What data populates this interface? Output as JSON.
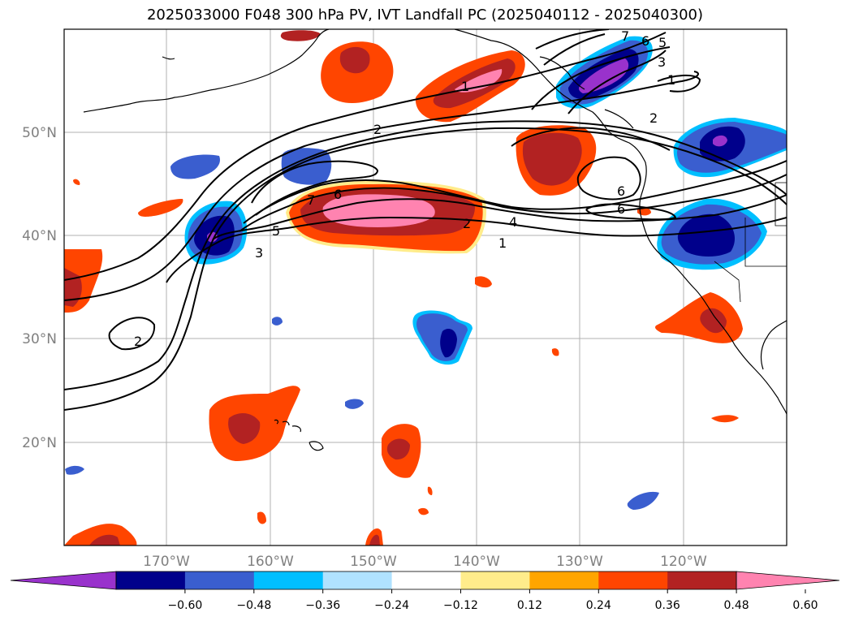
{
  "title": "2025033000 F048 300 hPa PV, IVT Landfall PC (2025040112 - 2025040300)",
  "map": {
    "lon_labels": [
      "170°W",
      "160°W",
      "150°W",
      "140°W",
      "130°W",
      "120°W"
    ],
    "lat_labels": [
      "50°N",
      "40°N",
      "30°N",
      "20°N"
    ],
    "contour_labels": [
      "1",
      "2",
      "3",
      "4",
      "5",
      "6",
      "7"
    ]
  },
  "colorbar": {
    "ticks": [
      "−0.60",
      "−0.48",
      "−0.36",
      "−0.24",
      "−0.12",
      "0.12",
      "0.24",
      "0.36",
      "0.48",
      "0.60"
    ],
    "colors": [
      "#9932CC",
      "#00008B",
      "#3A5ECF",
      "#00BFFF",
      "#B0E2FF",
      "#FFFFFF",
      "#FFEC8B",
      "#FFA500",
      "#FF4500",
      "#B22222",
      "#FF83B0"
    ]
  }
}
